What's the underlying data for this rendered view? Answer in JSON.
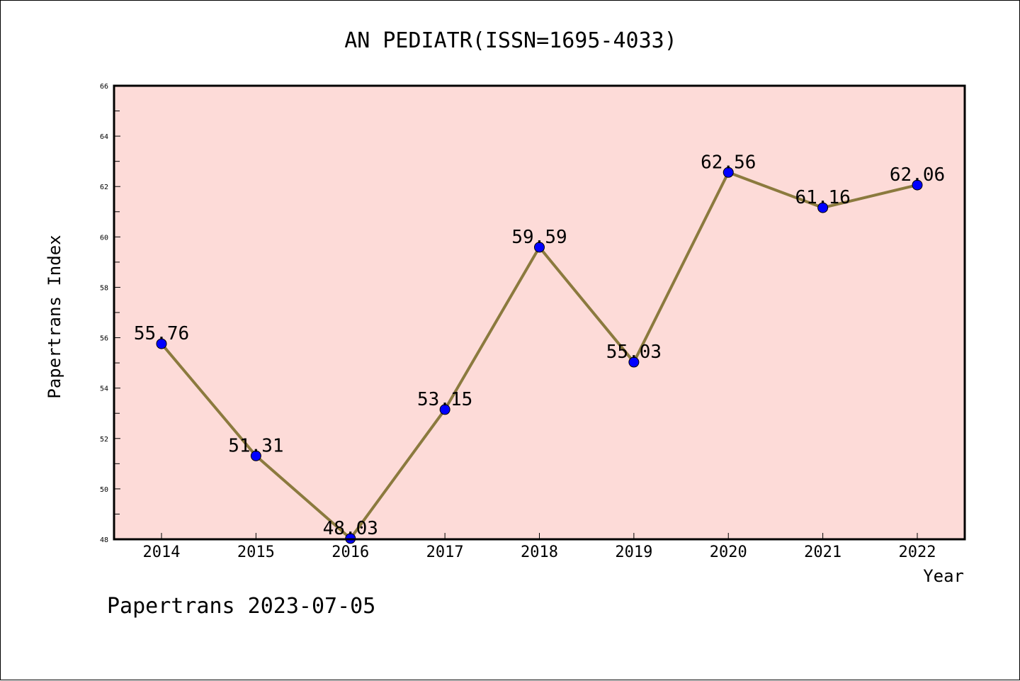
{
  "chart_data": {
    "type": "line",
    "title": "AN PEDIATR(ISSN=1695-4033)",
    "xlabel": "Year",
    "ylabel": "Papertrans Index",
    "categories": [
      "2014",
      "2015",
      "2016",
      "2017",
      "2018",
      "2019",
      "2020",
      "2021",
      "2022"
    ],
    "series": [
      {
        "values": [
          55.76,
          51.31,
          48.03,
          53.15,
          59.59,
          55.03,
          62.56,
          61.16,
          62.06
        ],
        "labels": [
          "55.76",
          "51.31",
          "48.03",
          "53.15",
          "59.59",
          "55.03",
          "62.56",
          "61.16",
          "62.06"
        ]
      }
    ],
    "ylim": [
      48,
      66
    ],
    "yticks": [
      "48",
      "50",
      "52",
      "54",
      "56",
      "58",
      "60",
      "62",
      "64",
      "66"
    ],
    "grid": false,
    "colors": {
      "plot_background": "#fddbd8",
      "line": "#8b7a3e",
      "marker": "#0000ff"
    }
  },
  "footer": {
    "text": "Papertrans 2023-07-05"
  }
}
